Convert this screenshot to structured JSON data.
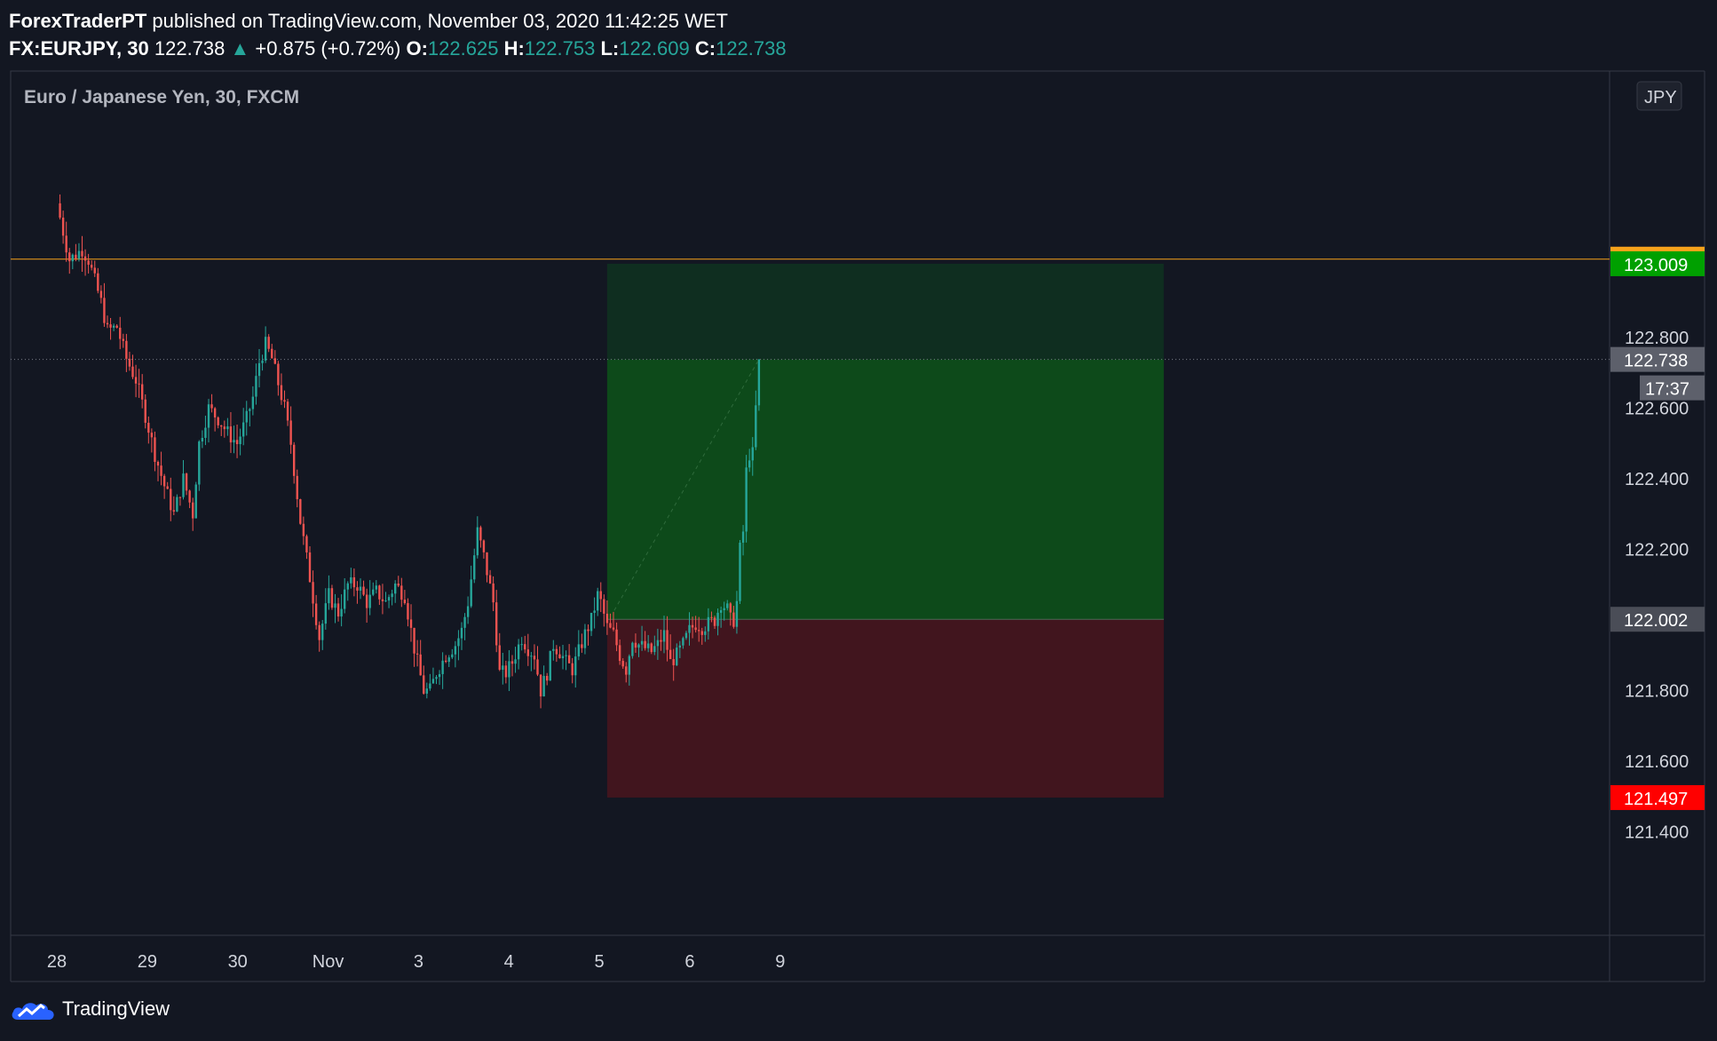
{
  "header": {
    "author": "ForexTraderPT",
    "published_text": "published on TradingView.com, November 03, 2020 11:42:25 WET",
    "symbol": "FX:EURJPY, 30",
    "last": "122.738",
    "change": "+0.875 (+0.72%)",
    "o_label": "O:",
    "o_value": "122.625",
    "h_label": "H:",
    "h_value": "122.753",
    "l_label": "L:",
    "l_value": "122.609",
    "c_label": "C:",
    "c_value": "122.738"
  },
  "footer": {
    "brand": "TradingView"
  },
  "colors": {
    "background": "#131722",
    "up": "#26a69a",
    "down": "#ef5350",
    "profit_zone": "#0d4a1a",
    "profit_zone_light": "#0f2e20",
    "loss_zone": "#41151e",
    "alert_line": "#f7a21b",
    "target_label": "#00a000",
    "stop_label": "#ff0000",
    "grid_border": "#363a45",
    "axis_text": "#d1d4dc",
    "last_label": "#5d606b"
  },
  "chart_data": {
    "type": "candlestick",
    "title": "Euro / Japanese Yen, 30, FXCM",
    "currency_badge": "JPY",
    "y_axis": {
      "range": [
        121.25,
        123.2
      ],
      "ticks": [
        "123.000",
        "122.800",
        "122.600",
        "122.400",
        "122.200",
        "121.800",
        "121.600",
        "121.400"
      ],
      "tick_values": [
        123.0,
        122.8,
        122.6,
        122.4,
        122.2,
        121.8,
        121.6,
        121.4
      ]
    },
    "x_axis": {
      "ticks": [
        "28",
        "29",
        "30",
        "Nov",
        "3",
        "4",
        "5",
        "6",
        "9"
      ],
      "tick_values": [
        0,
        48,
        96,
        144,
        192,
        240,
        288,
        336,
        384
      ]
    },
    "annotations": {
      "alert_line": {
        "value": 123.022,
        "label": "123.022"
      },
      "target": {
        "value": 123.009,
        "label": "123.009"
      },
      "last_price": {
        "value": 122.738,
        "label": "122.738",
        "countdown": "17:37"
      },
      "entry": {
        "value": 122.002,
        "label": "122.002"
      },
      "stop": {
        "value": 121.497,
        "label": "121.497"
      },
      "position_start_bar": 174,
      "position_end_bar": 350
    },
    "series": [
      {
        "name": "EURJPY",
        "close_path": [
          [
            0,
            123.18
          ],
          [
            4,
            123.02
          ],
          [
            8,
            123.05
          ],
          [
            10,
            123.02
          ],
          [
            14,
            122.9
          ],
          [
            16,
            122.82
          ],
          [
            19,
            122.83
          ],
          [
            22,
            122.74
          ],
          [
            25,
            122.68
          ],
          [
            28,
            122.58
          ],
          [
            31,
            122.47
          ],
          [
            34,
            122.38
          ],
          [
            37,
            122.3
          ],
          [
            40,
            122.4
          ],
          [
            43,
            122.3
          ],
          [
            45,
            122.5
          ],
          [
            48,
            122.6
          ],
          [
            51,
            122.57
          ],
          [
            54,
            122.53
          ],
          [
            57,
            122.5
          ],
          [
            60,
            122.57
          ],
          [
            62,
            122.63
          ],
          [
            64,
            122.73
          ],
          [
            66,
            122.78
          ],
          [
            68,
            122.74
          ],
          [
            70,
            122.67
          ],
          [
            72,
            122.6
          ],
          [
            74,
            122.5
          ],
          [
            77,
            122.28
          ],
          [
            80,
            122.12
          ],
          [
            83,
            121.95
          ],
          [
            86,
            122.07
          ],
          [
            89,
            122.02
          ],
          [
            92,
            122.1
          ],
          [
            95,
            122.1
          ],
          [
            98,
            122.05
          ],
          [
            101,
            122.08
          ],
          [
            104,
            122.05
          ],
          [
            107,
            122.1
          ],
          [
            110,
            122.07
          ],
          [
            113,
            121.92
          ],
          [
            116,
            121.8
          ],
          [
            118,
            121.8
          ],
          [
            120,
            121.85
          ],
          [
            123,
            121.9
          ],
          [
            126,
            121.93
          ],
          [
            128,
            121.97
          ],
          [
            130,
            122.05
          ],
          [
            133,
            122.25
          ],
          [
            135,
            122.18
          ],
          [
            138,
            122.05
          ],
          [
            140,
            121.85
          ],
          [
            142,
            121.85
          ],
          [
            144,
            121.88
          ],
          [
            147,
            121.95
          ],
          [
            149,
            121.92
          ],
          [
            151,
            121.9
          ],
          [
            153,
            121.8
          ],
          [
            155,
            121.85
          ],
          [
            157,
            121.93
          ],
          [
            159,
            121.91
          ],
          [
            161,
            121.88
          ],
          [
            163,
            121.86
          ],
          [
            165,
            121.91
          ],
          [
            167,
            121.96
          ],
          [
            169,
            122.0
          ],
          [
            171,
            122.07
          ],
          [
            172,
            122.05
          ],
          [
            174,
            121.98
          ],
          [
            176,
            121.96
          ],
          [
            178,
            121.9
          ],
          [
            180,
            121.86
          ],
          [
            182,
            121.95
          ],
          [
            184,
            121.93
          ],
          [
            186,
            121.92
          ],
          [
            188,
            121.91
          ],
          [
            190,
            121.93
          ],
          [
            192,
            121.96
          ],
          [
            194,
            121.88
          ],
          [
            196,
            121.9
          ],
          [
            198,
            121.93
          ],
          [
            200,
            121.97
          ],
          [
            202,
            121.99
          ],
          [
            204,
            121.98
          ],
          [
            206,
            121.99
          ],
          [
            208,
            122.0
          ],
          [
            210,
            122.05
          ],
          [
            212,
            122.03
          ],
          [
            213,
            122.0
          ],
          [
            214,
            122.0
          ],
          [
            215,
            122.05
          ],
          [
            216,
            122.2
          ],
          [
            217,
            122.25
          ],
          [
            218,
            122.42
          ],
          [
            219,
            122.47
          ],
          [
            220,
            122.47
          ],
          [
            221,
            122.6
          ],
          [
            222,
            122.738
          ]
        ]
      }
    ]
  }
}
